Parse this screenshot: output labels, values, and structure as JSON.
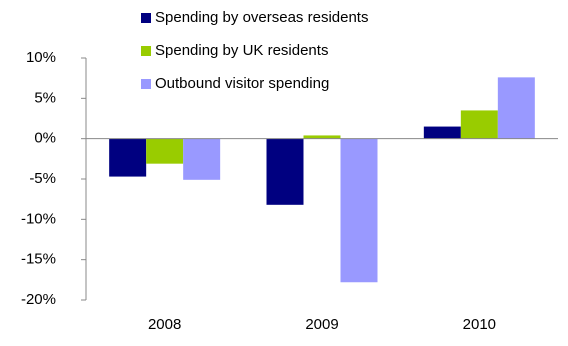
{
  "chart_data": {
    "type": "bar",
    "categories": [
      "2008",
      "2009",
      "2010"
    ],
    "series": [
      {
        "name": "Spending by overseas residents",
        "color": "#000080",
        "values": [
          -4.7,
          -8.2,
          1.5
        ]
      },
      {
        "name": "Spending by UK residents",
        "color": "#99cc00",
        "values": [
          -3.1,
          0.4,
          3.5
        ]
      },
      {
        "name": "Outbound visitor spending",
        "color": "#9999ff",
        "values": [
          -5.1,
          -17.8,
          7.6
        ]
      }
    ],
    "ylim": [
      -20,
      10
    ],
    "yticks": [
      {
        "value": -20,
        "label": "-20%"
      },
      {
        "value": -15,
        "label": "-15%"
      },
      {
        "value": -10,
        "label": "-10%"
      },
      {
        "value": -5,
        "label": "-5%"
      },
      {
        "value": 0,
        "label": "0%"
      },
      {
        "value": 5,
        "label": "5%"
      },
      {
        "value": 10,
        "label": "10%"
      }
    ],
    "legend": "top-left"
  }
}
